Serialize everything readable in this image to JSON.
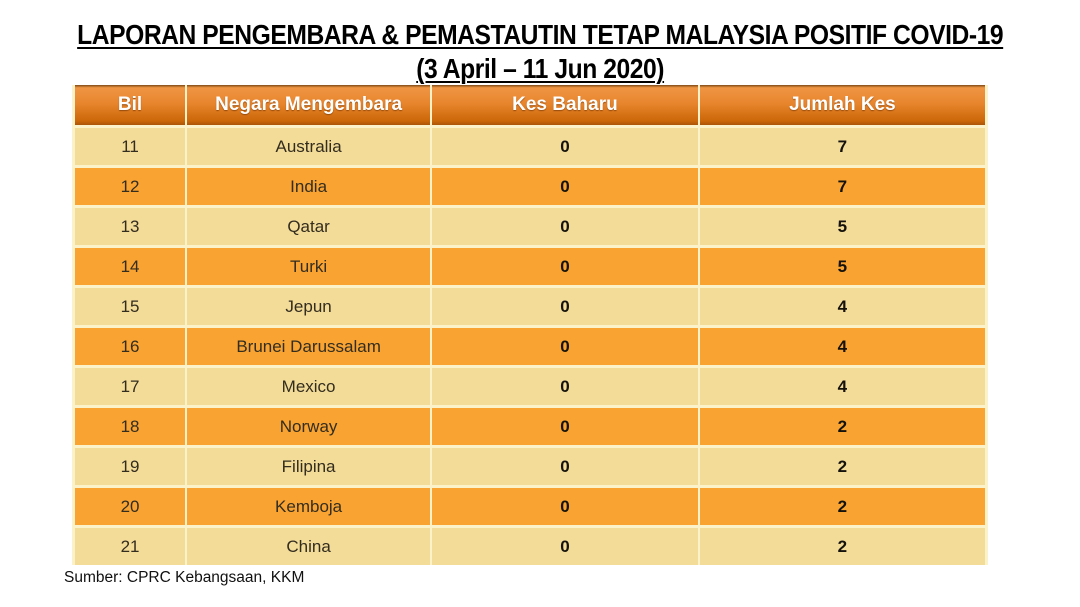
{
  "slide": {
    "title_line1": "LAPORAN PENGEMBARA & PEMASTAUTIN TETAP MALAYSIA POSITIF COVID-19",
    "title_line2": "(3 April – 11 Jun 2020)"
  },
  "table": {
    "columns": [
      "Bil",
      "Negara Mengembara",
      "Kes Baharu",
      "Jumlah Kes"
    ],
    "rows": [
      {
        "bil": "11",
        "negara": "Australia",
        "kes_baharu": "0",
        "jumlah_kes": "7"
      },
      {
        "bil": "12",
        "negara": "India",
        "kes_baharu": "0",
        "jumlah_kes": "7"
      },
      {
        "bil": "13",
        "negara": "Qatar",
        "kes_baharu": "0",
        "jumlah_kes": "5"
      },
      {
        "bil": "14",
        "negara": "Turki",
        "kes_baharu": "0",
        "jumlah_kes": "5"
      },
      {
        "bil": "15",
        "negara": "Jepun",
        "kes_baharu": "0",
        "jumlah_kes": "4"
      },
      {
        "bil": "16",
        "negara": "Brunei Darussalam",
        "kes_baharu": "0",
        "jumlah_kes": "4"
      },
      {
        "bil": "17",
        "negara": "Mexico",
        "kes_baharu": "0",
        "jumlah_kes": "4"
      },
      {
        "bil": "18",
        "negara": "Norway",
        "kes_baharu": "0",
        "jumlah_kes": "2"
      },
      {
        "bil": "19",
        "negara": "Filipina",
        "kes_baharu": "0",
        "jumlah_kes": "2"
      },
      {
        "bil": "20",
        "negara": "Kemboja",
        "kes_baharu": "0",
        "jumlah_kes": "2"
      },
      {
        "bil": "21",
        "negara": "China",
        "kes_baharu": "0",
        "jumlah_kes": "2"
      }
    ]
  },
  "footer": {
    "source": "Sumber: CPRC Kebangsaan, KKM"
  },
  "colors": {
    "header_gradient_top": "#ef9544",
    "header_gradient_bottom": "#c56307",
    "row_orange": "#f9a332",
    "row_tan": "#f3db98",
    "grid_cream": "#fcf2ca",
    "header_text": "#ffffff",
    "body_text": "#332d1f"
  }
}
